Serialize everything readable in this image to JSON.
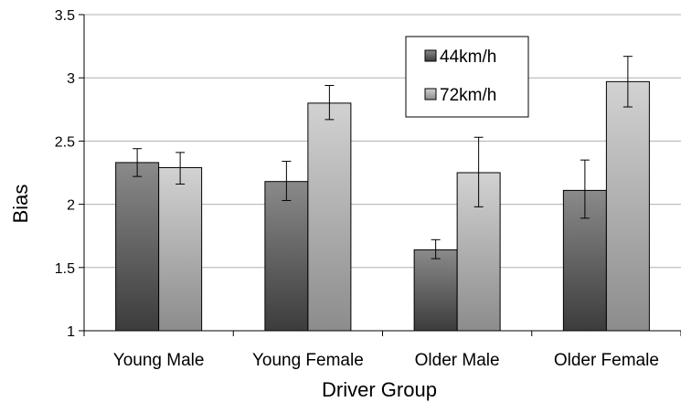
{
  "chart_data": {
    "type": "bar",
    "categories": [
      "Young Male",
      "Young Female",
      "Older Male",
      "Older Female"
    ],
    "series": [
      {
        "name": "44km/h",
        "values": [
          2.33,
          2.18,
          1.64,
          2.11
        ],
        "error_low": [
          2.22,
          2.03,
          1.57,
          1.89
        ],
        "error_high": [
          2.44,
          2.34,
          1.72,
          2.35
        ],
        "color_top": "#8a8a8a",
        "color_bottom": "#3c3c3c"
      },
      {
        "name": "72km/h",
        "values": [
          2.29,
          2.8,
          2.25,
          2.97
        ],
        "error_low": [
          2.16,
          2.67,
          1.98,
          2.77
        ],
        "error_high": [
          2.41,
          2.94,
          2.53,
          3.17
        ],
        "color_top": "#d2d2d2",
        "color_bottom": "#8c8c8c"
      }
    ],
    "title": "",
    "xlabel": "Driver Group",
    "ylabel": "Bias",
    "ylim": [
      1,
      3.5
    ],
    "yticks": [
      "1",
      "1.5",
      "2",
      "2.5",
      "3",
      "3.5"
    ],
    "grid": true,
    "legend_position": "top-right"
  }
}
